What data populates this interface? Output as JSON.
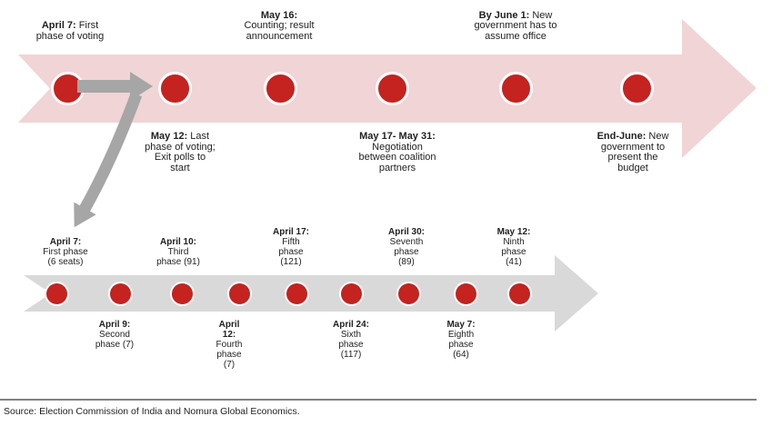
{
  "colors": {
    "node_red": "#c42320",
    "node_ring": "#ffffff",
    "band_pink": "#f0d4d6",
    "band_gray": "#d9d9d9",
    "arrow_gray": "#a6a6a6",
    "divider_gray": "#808080",
    "text_dark": "#1f1f1f"
  },
  "top_timeline": {
    "events": [
      {
        "bold": "April 7:",
        "rest": " First\nphase of voting",
        "side": "above"
      },
      {
        "bold": "May 12:",
        "rest": " Last\nphase of voting;\nExit polls to\nstart",
        "side": "below"
      },
      {
        "bold": "May 16:",
        "rest": "\nCounting; result\nannouncement",
        "side": "above"
      },
      {
        "bold": "May 17- May 31:",
        "rest": "\nNegotiation\nbetween coalition\npartners",
        "side": "below"
      },
      {
        "bold": "By June 1:",
        "rest": " New\ngovernment has to\nassume office",
        "side": "above"
      },
      {
        "bold": "End-June:",
        "rest": " New\ngovernment to\npresent the\nbudget",
        "side": "below"
      }
    ]
  },
  "bottom_timeline": {
    "phases": [
      {
        "bold": "April 7:",
        "rest": "\nFirst phase\n(6 seats)",
        "side": "above"
      },
      {
        "bold": "April 9:",
        "rest": "\nSecond\nphase (7)",
        "side": "below"
      },
      {
        "bold": "April 10:",
        "rest": "\nThird\nphase (91)",
        "side": "above"
      },
      {
        "bold": "April\n12:",
        "rest": "\nFourth\nphase\n(7)",
        "side": "below"
      },
      {
        "bold": "April 17:",
        "rest": "\nFifth\nphase\n(121)",
        "side": "above"
      },
      {
        "bold": "April 24:",
        "rest": "\nSixth\nphase\n(117)",
        "side": "below"
      },
      {
        "bold": "April 30:",
        "rest": "\nSeventh\nphase\n(89)",
        "side": "above"
      },
      {
        "bold": "May 7:",
        "rest": "\nEighth\nphase\n(64)",
        "side": "below"
      },
      {
        "bold": "May 12:",
        "rest": "\nNinth\nphase\n(41)",
        "side": "above"
      }
    ]
  },
  "source": {
    "text": "Source: Election Commission of India and Nomura Global Economics."
  }
}
